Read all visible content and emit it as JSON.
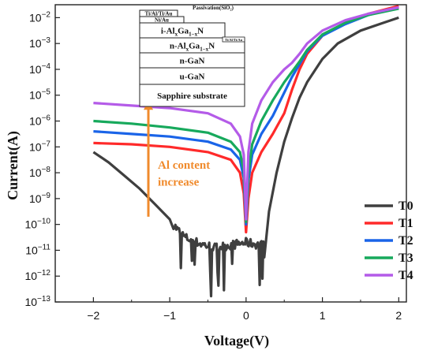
{
  "chart_data": {
    "type": "line",
    "xlabel": "Voltage(V)",
    "ylabel": "Current(A)",
    "xlim": [
      -2.5,
      2.1
    ],
    "ylim_log10": [
      -13,
      -1.5
    ],
    "yscale": "log",
    "x_ticks": [
      -2,
      -1,
      0,
      1,
      2
    ],
    "x_tick_labels": [
      "−2",
      "−1",
      "0",
      "1",
      "2"
    ],
    "y_ticks_exp": [
      -13,
      -12,
      -11,
      -10,
      -9,
      -8,
      -7,
      -6,
      -5,
      -4,
      -3,
      -2
    ],
    "y_tick_base": "10",
    "legend_position": "bottom-right",
    "series": [
      {
        "name": "T0",
        "color": "#3f3f3f",
        "noisy_low_range": [
          -0.95,
          0.25
        ],
        "points": [
          [
            -2,
            -7.2
          ],
          [
            -1.8,
            -7.6
          ],
          [
            -1.6,
            -8.1
          ],
          [
            -1.4,
            -8.6
          ],
          [
            -1.2,
            -9.2
          ],
          [
            -1.0,
            -9.8
          ],
          [
            -0.9,
            -10.2
          ],
          [
            -0.8,
            -10.5
          ],
          [
            -0.6,
            -10.75
          ],
          [
            -0.4,
            -10.9
          ],
          [
            -0.2,
            -10.8
          ],
          [
            0.0,
            -10.7
          ],
          [
            0.2,
            -10.8
          ],
          [
            0.25,
            -10.6
          ],
          [
            0.3,
            -9.5
          ],
          [
            0.4,
            -8.0
          ],
          [
            0.5,
            -6.8
          ],
          [
            0.6,
            -5.9
          ],
          [
            0.7,
            -5.1
          ],
          [
            0.8,
            -4.5
          ],
          [
            1.0,
            -3.6
          ],
          [
            1.2,
            -3.0
          ],
          [
            1.5,
            -2.5
          ],
          [
            1.8,
            -2.2
          ],
          [
            2.0,
            -2.0
          ]
        ]
      },
      {
        "name": "T1",
        "color": "#ff2a2a",
        "points": [
          [
            -2,
            -6.85
          ],
          [
            -1.5,
            -6.9
          ],
          [
            -1.0,
            -7.0
          ],
          [
            -0.5,
            -7.2
          ],
          [
            -0.2,
            -7.5
          ],
          [
            -0.08,
            -8.0
          ],
          [
            -0.03,
            -8.8
          ],
          [
            0.0,
            -10.3
          ],
          [
            0.03,
            -9.0
          ],
          [
            0.08,
            -8.0
          ],
          [
            0.2,
            -7.2
          ],
          [
            0.35,
            -6.5
          ],
          [
            0.5,
            -5.7
          ],
          [
            0.6,
            -4.8
          ],
          [
            0.7,
            -4.0
          ],
          [
            0.8,
            -3.4
          ],
          [
            1.0,
            -2.7
          ],
          [
            1.3,
            -2.2
          ],
          [
            1.6,
            -1.85
          ],
          [
            2.0,
            -1.55
          ]
        ]
      },
      {
        "name": "T2",
        "color": "#1a64e8",
        "points": [
          [
            -2,
            -6.4
          ],
          [
            -1.5,
            -6.5
          ],
          [
            -1.0,
            -6.6
          ],
          [
            -0.5,
            -6.8
          ],
          [
            -0.2,
            -7.1
          ],
          [
            -0.08,
            -7.5
          ],
          [
            -0.03,
            -8.2
          ],
          [
            0.0,
            -10.0
          ],
          [
            0.03,
            -8.3
          ],
          [
            0.08,
            -7.3
          ],
          [
            0.2,
            -6.5
          ],
          [
            0.35,
            -5.8
          ],
          [
            0.5,
            -4.9
          ],
          [
            0.6,
            -4.3
          ],
          [
            0.7,
            -3.8
          ],
          [
            0.8,
            -3.3
          ],
          [
            1.0,
            -2.7
          ],
          [
            1.3,
            -2.25
          ],
          [
            1.6,
            -1.9
          ],
          [
            2.0,
            -1.6
          ]
        ]
      },
      {
        "name": "T3",
        "color": "#17a95c",
        "points": [
          [
            -2,
            -6.0
          ],
          [
            -1.5,
            -6.1
          ],
          [
            -1.0,
            -6.25
          ],
          [
            -0.5,
            -6.45
          ],
          [
            -0.2,
            -6.8
          ],
          [
            -0.08,
            -7.2
          ],
          [
            -0.03,
            -7.9
          ],
          [
            0.0,
            -9.9
          ],
          [
            0.03,
            -8.0
          ],
          [
            0.08,
            -6.9
          ],
          [
            0.2,
            -6.0
          ],
          [
            0.35,
            -5.2
          ],
          [
            0.5,
            -4.5
          ],
          [
            0.6,
            -4.1
          ],
          [
            0.7,
            -3.7
          ],
          [
            0.8,
            -3.25
          ],
          [
            1.0,
            -2.65
          ],
          [
            1.3,
            -2.2
          ],
          [
            1.6,
            -1.9
          ],
          [
            2.0,
            -1.65
          ]
        ]
      },
      {
        "name": "T4",
        "color": "#b45be8",
        "points": [
          [
            -2,
            -5.3
          ],
          [
            -1.5,
            -5.4
          ],
          [
            -1.0,
            -5.5
          ],
          [
            -0.5,
            -5.7
          ],
          [
            -0.2,
            -6.1
          ],
          [
            -0.08,
            -6.6
          ],
          [
            -0.03,
            -7.3
          ],
          [
            0.0,
            -9.8
          ],
          [
            0.03,
            -7.2
          ],
          [
            0.08,
            -6.1
          ],
          [
            0.2,
            -5.2
          ],
          [
            0.35,
            -4.5
          ],
          [
            0.5,
            -4.0
          ],
          [
            0.6,
            -3.75
          ],
          [
            0.7,
            -3.4
          ],
          [
            0.8,
            -3.0
          ],
          [
            1.0,
            -2.5
          ],
          [
            1.3,
            -2.1
          ],
          [
            1.6,
            -1.85
          ],
          [
            2.0,
            -1.6
          ]
        ]
      }
    ],
    "annotation": {
      "line1": "Al content",
      "line2": "increase",
      "color": "#f08a2c",
      "arrow_from": [
        -1.28,
        -9.7
      ],
      "arrow_to": [
        -1.28,
        -5.2
      ]
    },
    "inset": {
      "layers": [
        {
          "label": "Ti/Al/Ti/Au"
        },
        {
          "label": "Ni/Au"
        },
        {
          "label": "i-Al",
          "sub1": "x",
          "mid": "Ga",
          "sub2": "1−x",
          "tail": "N"
        },
        {
          "label": "n-Al",
          "sub1": "x",
          "mid": "Ga",
          "sub2": "1−x",
          "tail": "N"
        },
        {
          "label": "n-GaN"
        },
        {
          "label": "u-GaN"
        },
        {
          "label": "Sapphire substrate"
        }
      ],
      "passivation_label": "Passivation(SiO₂)",
      "contact_label": "Ti/Al/Ti/Au"
    }
  }
}
